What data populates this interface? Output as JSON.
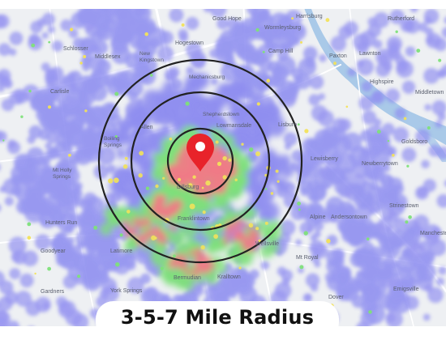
{
  "title": "3-5-7 Mile Radius",
  "center": {
    "label": "Dillsburg"
  },
  "radius_rings_miles": [
    3,
    5,
    7
  ],
  "colors": {
    "heat_low": "#8f8ef0",
    "heat_mid": "#7ee07a",
    "heat_high": "#f2e25a",
    "heat_peak": "#f07a86",
    "ring": "#222222",
    "marker": "#e8232a",
    "water": "#a9c9e8"
  },
  "marker_icon": "map-pin-icon",
  "places": [
    {
      "name": "Good Hope"
    },
    {
      "name": "Harrisburg"
    },
    {
      "name": "Rutherford"
    },
    {
      "name": "Schlosser"
    },
    {
      "name": "Hogestown"
    },
    {
      "name": "Wormleysburg"
    },
    {
      "name": "Lawnton"
    },
    {
      "name": "Middlesex"
    },
    {
      "name": "New Kingstown"
    },
    {
      "name": "Camp Hill"
    },
    {
      "name": "Paxton"
    },
    {
      "name": "Carlisle"
    },
    {
      "name": "Mechanicsburg"
    },
    {
      "name": "Highspire"
    },
    {
      "name": "Middletown"
    },
    {
      "name": "Shepherdstown"
    },
    {
      "name": "Lowmansdale"
    },
    {
      "name": "Allen"
    },
    {
      "name": "Lisburn"
    },
    {
      "name": "Boiling Springs"
    },
    {
      "name": "Goldsboro"
    },
    {
      "name": "Lewisberry"
    },
    {
      "name": "Mt Holly Springs"
    },
    {
      "name": "Newberrytown"
    },
    {
      "name": "Dillsburg"
    },
    {
      "name": "Franklintown"
    },
    {
      "name": "Strinestown"
    },
    {
      "name": "Hunters Run"
    },
    {
      "name": "Alpine"
    },
    {
      "name": "Andersontown"
    },
    {
      "name": "Goodyear"
    },
    {
      "name": "Latimore"
    },
    {
      "name": "Mt Royal"
    },
    {
      "name": "Wellsville"
    },
    {
      "name": "Bermudian"
    },
    {
      "name": "Kralltown"
    },
    {
      "name": "Gardners"
    },
    {
      "name": "York Springs"
    },
    {
      "name": "Dover"
    },
    {
      "name": "Emigsville"
    },
    {
      "name": "Manchester"
    }
  ]
}
